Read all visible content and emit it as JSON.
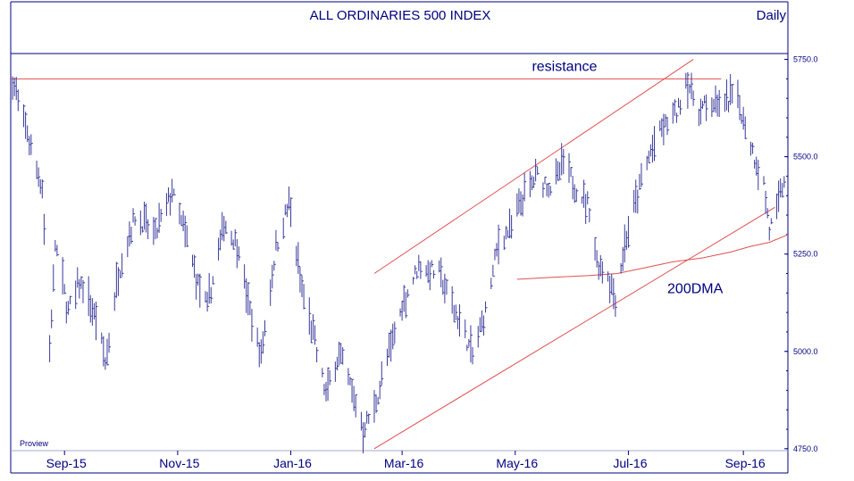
{
  "chart_data": {
    "type": "ohlc",
    "title": "ALL ORDINARIES 500 INDEX",
    "period": "Daily",
    "watermark": "Proview",
    "ylim": [
      4745,
      5765
    ],
    "y_ticks": [
      "5750.0",
      "5500.0",
      "5250.0",
      "5000.0",
      "4750.0"
    ],
    "y_tick_values": [
      5750,
      5500,
      5250,
      5000,
      4750
    ],
    "x_ticks": [
      "Sep-15",
      "Nov-15",
      "Jan-16",
      "Mar-16",
      "May-16",
      "Jul-16",
      "Sep-16"
    ],
    "x_range": [
      "2015-08-03",
      "2016-09-25"
    ],
    "x_tick_dates": [
      "2015-09-01",
      "2015-11-01",
      "2016-01-01",
      "2016-03-01",
      "2016-05-01",
      "2016-07-01",
      "2016-09-01"
    ],
    "colors": {
      "frame": "#000080",
      "text": "#000080",
      "price": "#3a3a9c",
      "overlay": "#e05050",
      "grid": "#aaaacc"
    },
    "price_anchors": [
      [
        "2015-08-04",
        5695
      ],
      [
        "2015-08-12",
        5560
      ],
      [
        "2015-08-20",
        5420
      ],
      [
        "2015-08-24",
        5000
      ],
      [
        "2015-08-27",
        5280
      ],
      [
        "2015-09-03",
        5100
      ],
      [
        "2015-09-09",
        5180
      ],
      [
        "2015-09-18",
        5080
      ],
      [
        "2015-09-23",
        4970
      ],
      [
        "2015-09-30",
        5200
      ],
      [
        "2015-10-09",
        5350
      ],
      [
        "2015-10-20",
        5300
      ],
      [
        "2015-10-29",
        5410
      ],
      [
        "2015-11-05",
        5300
      ],
      [
        "2015-11-12",
        5170
      ],
      [
        "2015-11-17",
        5110
      ],
      [
        "2015-11-26",
        5330
      ],
      [
        "2015-12-04",
        5270
      ],
      [
        "2015-12-09",
        5120
      ],
      [
        "2015-12-16",
        4990
      ],
      [
        "2015-12-24",
        5270
      ],
      [
        "2015-12-31",
        5380
      ],
      [
        "2016-01-07",
        5160
      ],
      [
        "2016-01-14",
        5020
      ],
      [
        "2016-01-20",
        4890
      ],
      [
        "2016-01-27",
        5000
      ],
      [
        "2016-02-03",
        4900
      ],
      [
        "2016-02-09",
        4800
      ],
      [
        "2016-02-15",
        4850
      ],
      [
        "2016-02-23",
        5000
      ],
      [
        "2016-03-02",
        5130
      ],
      [
        "2016-03-10",
        5220
      ],
      [
        "2016-03-21",
        5200
      ],
      [
        "2016-03-28",
        5120
      ],
      [
        "2016-04-04",
        5040
      ],
      [
        "2016-04-08",
        4990
      ],
      [
        "2016-04-15",
        5100
      ],
      [
        "2016-04-22",
        5280
      ],
      [
        "2016-04-29",
        5320
      ],
      [
        "2016-05-06",
        5400
      ],
      [
        "2016-05-13",
        5450
      ],
      [
        "2016-05-20",
        5420
      ],
      [
        "2016-05-27",
        5480
      ],
      [
        "2016-06-03",
        5420
      ],
      [
        "2016-06-10",
        5370
      ],
      [
        "2016-06-14",
        5230
      ],
      [
        "2016-06-20",
        5200
      ],
      [
        "2016-06-24",
        5140
      ],
      [
        "2016-06-30",
        5300
      ],
      [
        "2016-07-07",
        5420
      ],
      [
        "2016-07-14",
        5530
      ],
      [
        "2016-07-21",
        5580
      ],
      [
        "2016-07-28",
        5620
      ],
      [
        "2016-08-01",
        5700
      ],
      [
        "2016-08-08",
        5620
      ],
      [
        "2016-08-15",
        5640
      ],
      [
        "2016-08-22",
        5630
      ],
      [
        "2016-08-28",
        5670
      ],
      [
        "2016-09-01",
        5600
      ],
      [
        "2016-09-07",
        5500
      ],
      [
        "2016-09-12",
        5430
      ],
      [
        "2016-09-15",
        5310
      ],
      [
        "2016-09-20",
        5380
      ],
      [
        "2016-09-25",
        5480
      ]
    ],
    "dma_200": {
      "label": "200DMA",
      "points": [
        [
          "2016-05-02",
          5185
        ],
        [
          "2016-05-20",
          5190
        ],
        [
          "2016-06-10",
          5195
        ],
        [
          "2016-06-25",
          5200
        ],
        [
          "2016-07-10",
          5215
        ],
        [
          "2016-07-25",
          5230
        ],
        [
          "2016-08-10",
          5240
        ],
        [
          "2016-08-25",
          5255
        ],
        [
          "2016-09-05",
          5270
        ],
        [
          "2016-09-15",
          5280
        ],
        [
          "2016-09-25",
          5300
        ]
      ]
    },
    "resistance": {
      "label": "resistance",
      "value": 5700,
      "x_from": "2015-08-03",
      "x_to": "2016-08-20"
    },
    "channel_upper": {
      "from": [
        "2016-02-15",
        5200
      ],
      "to": [
        "2016-08-05",
        5750
      ]
    },
    "channel_lower": {
      "from": [
        "2016-02-15",
        4750
      ],
      "to": [
        "2016-09-18",
        5370
      ]
    },
    "annotations": [
      {
        "text": "resistance",
        "x": "2016-05-10",
        "y": 5720
      },
      {
        "text": "200DMA",
        "x": "2016-07-22",
        "y": 5150
      }
    ]
  }
}
